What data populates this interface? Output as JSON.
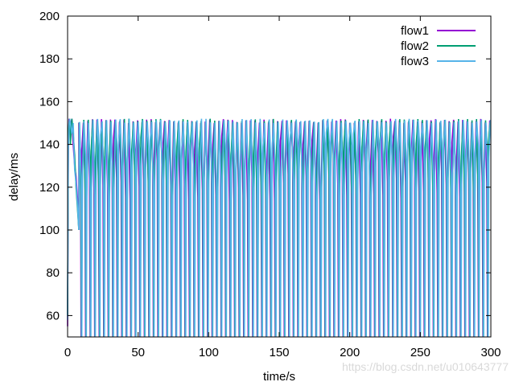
{
  "chart_data": {
    "type": "line",
    "title": "",
    "xlabel": "time/s",
    "ylabel": "delay/ms",
    "xlim": [
      0,
      300
    ],
    "ylim": [
      50,
      200
    ],
    "xticks": [
      0,
      50,
      100,
      150,
      200,
      250,
      300
    ],
    "yticks": [
      60,
      80,
      100,
      120,
      140,
      160,
      180,
      200
    ],
    "grid": false,
    "legend_position": "top-right",
    "oscillation": {
      "start_time": 8,
      "period_s": 3.2,
      "peak_ms": 152,
      "trough_ms": 50,
      "band_ms": [
        113,
        140
      ]
    },
    "series": [
      {
        "name": "flow1",
        "color": "#9400d3",
        "x": [
          0,
          0.5,
          1,
          1.5,
          2,
          3,
          4,
          5,
          6,
          7,
          8
        ],
        "y": [
          55,
          140,
          152,
          150,
          148,
          152,
          140,
          130,
          125,
          115,
          100
        ]
      },
      {
        "name": "flow2",
        "color": "#009e73",
        "x": [
          0,
          0.5,
          1,
          1.5,
          2,
          3,
          4,
          5,
          6,
          7,
          8
        ],
        "y": [
          60,
          145,
          150,
          152,
          140,
          152,
          145,
          135,
          120,
          110,
          100
        ]
      },
      {
        "name": "flow3",
        "color": "#56b4e9",
        "x": [
          0,
          0.5,
          1,
          1.5,
          2,
          3,
          4,
          5,
          6,
          7,
          8
        ],
        "y": [
          58,
          138,
          148,
          152,
          150,
          145,
          150,
          128,
          122,
          112,
          100
        ]
      }
    ]
  },
  "watermark": "https://blog.csdn.net/u010643777"
}
